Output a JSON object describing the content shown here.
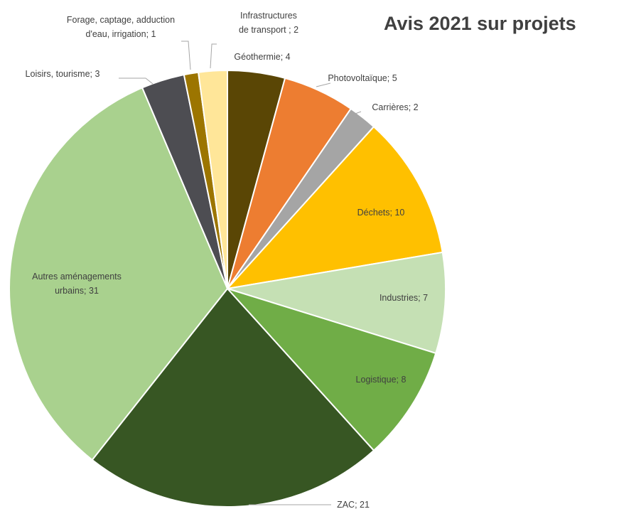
{
  "chart_data": {
    "type": "pie",
    "title": "Avis 2021 sur projets",
    "start_angle_deg": 0,
    "direction": "clockwise",
    "slices": [
      {
        "label": "Géothermie; 4",
        "category": "Géothermie",
        "value": 4,
        "color": "#5a4605"
      },
      {
        "label": "Photovoltaïque; 5",
        "category": "Photovoltaïque",
        "value": 5,
        "color": "#ed7d31"
      },
      {
        "label": "Carrières; 2",
        "category": "Carrières",
        "value": 2,
        "color": "#a5a5a5"
      },
      {
        "label": "Déchets; 10",
        "category": "Déchets",
        "value": 10,
        "color": "#ffc000"
      },
      {
        "label": "Industries; 7",
        "category": "Industries",
        "value": 7,
        "color": "#c5e0b4"
      },
      {
        "label": "Logistique; 8",
        "category": "Logistique",
        "value": 8,
        "color": "#70ad47"
      },
      {
        "label": "ZAC; 21",
        "category": "ZAC",
        "value": 21,
        "color": "#375623"
      },
      {
        "label": "Autres aménagements urbains; 31",
        "category": "Autres aménagements urbains",
        "value": 31,
        "color": "#a9d18e"
      },
      {
        "label": "Loisirs, tourisme; 3",
        "category": "Loisirs, tourisme",
        "value": 3,
        "color": "#4d4d52"
      },
      {
        "label": "Forage, captage, adduction d'eau, irrigation; 1",
        "category": "Forage, captage, adduction d'eau, irrigation",
        "value": 1,
        "color": "#9c7500"
      },
      {
        "label": "Infrastructures de transport ; 2",
        "category": "Infrastructures de transport",
        "value": 2,
        "color": "#ffe699"
      }
    ]
  }
}
